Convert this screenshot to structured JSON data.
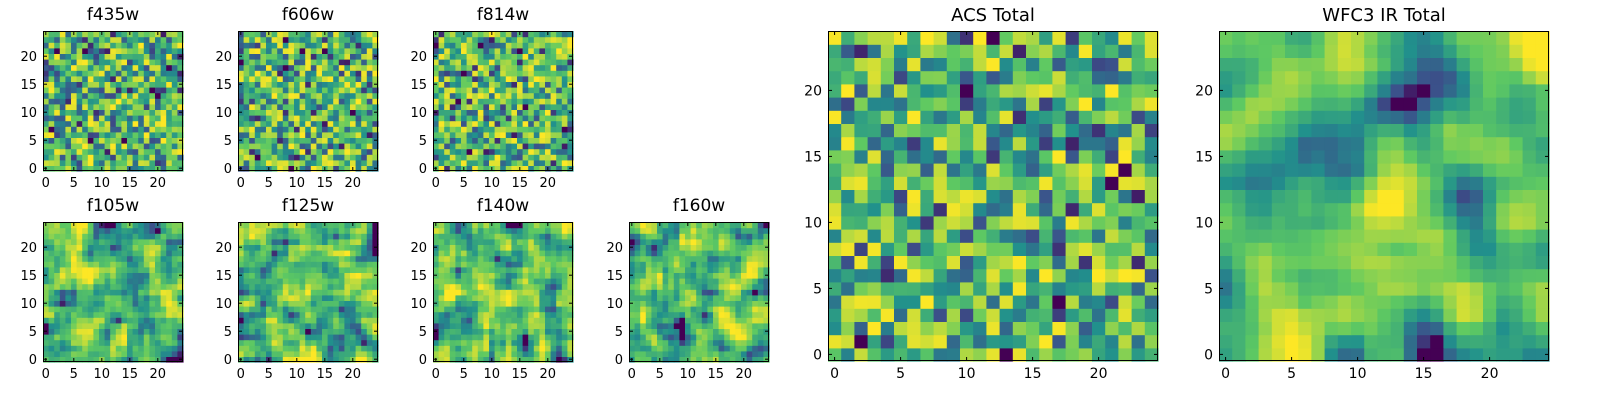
{
  "figure": {
    "colormap": "viridis",
    "colormap_colors": [
      "#440154",
      "#3b528b",
      "#21918c",
      "#5ec962",
      "#fde725"
    ]
  },
  "chart_data": [
    {
      "type": "heatmap",
      "title": "f435w",
      "size": 25,
      "seed": 11,
      "smooth": 0,
      "sat": 0.012,
      "xticks": [
        0,
        5,
        10,
        15,
        20
      ],
      "yticks": [
        0,
        5,
        10,
        15,
        20
      ],
      "xlim": [
        0,
        25
      ],
      "ylim": [
        0,
        25
      ]
    },
    {
      "type": "heatmap",
      "title": "f606w",
      "size": 25,
      "seed": 23,
      "smooth": 0,
      "sat": 0.012,
      "xticks": [
        0,
        5,
        10,
        15,
        20
      ],
      "yticks": [
        0,
        5,
        10,
        15,
        20
      ],
      "xlim": [
        0,
        25
      ],
      "ylim": [
        0,
        25
      ]
    },
    {
      "type": "heatmap",
      "title": "f814w",
      "size": 25,
      "seed": 37,
      "smooth": 0,
      "sat": 0.012,
      "xticks": [
        0,
        5,
        10,
        15,
        20
      ],
      "yticks": [
        0,
        5,
        10,
        15,
        20
      ],
      "xlim": [
        0,
        25
      ],
      "ylim": [
        0,
        25
      ]
    },
    {
      "type": "heatmap",
      "title": "f105w",
      "size": 25,
      "seed": 41,
      "smooth": 1,
      "sat": 0.012,
      "xticks": [
        0,
        5,
        10,
        15,
        20
      ],
      "yticks": [
        0,
        5,
        10,
        15,
        20
      ],
      "xlim": [
        0,
        25
      ],
      "ylim": [
        0,
        25
      ]
    },
    {
      "type": "heatmap",
      "title": "f125w",
      "size": 25,
      "seed": 53,
      "smooth": 1,
      "sat": 0.012,
      "xticks": [
        0,
        5,
        10,
        15,
        20
      ],
      "yticks": [
        0,
        5,
        10,
        15,
        20
      ],
      "xlim": [
        0,
        25
      ],
      "ylim": [
        0,
        25
      ]
    },
    {
      "type": "heatmap",
      "title": "f140w",
      "size": 25,
      "seed": 67,
      "smooth": 1,
      "sat": 0.012,
      "xticks": [
        0,
        5,
        10,
        15,
        20
      ],
      "yticks": [
        0,
        5,
        10,
        15,
        20
      ],
      "xlim": [
        0,
        25
      ],
      "ylim": [
        0,
        25
      ]
    },
    {
      "type": "heatmap",
      "title": "f160w",
      "size": 25,
      "seed": 79,
      "smooth": 1,
      "sat": 0.012,
      "xticks": [
        0,
        5,
        10,
        15,
        20
      ],
      "yticks": [
        0,
        5,
        10,
        15,
        20
      ],
      "xlim": [
        0,
        25
      ],
      "ylim": [
        0,
        25
      ]
    },
    {
      "type": "heatmap",
      "title": "ACS Total",
      "size": 25,
      "seed": 97,
      "smooth": 0,
      "sat": 0.01,
      "xticks": [
        0,
        5,
        10,
        15,
        20
      ],
      "yticks": [
        0,
        5,
        10,
        15,
        20
      ],
      "xlim": [
        0,
        25
      ],
      "ylim": [
        0,
        25
      ]
    },
    {
      "type": "heatmap",
      "title": "WFC3 IR Total",
      "size": 25,
      "seed": 101,
      "smooth": 2,
      "sat": 0.008,
      "xticks": [
        0,
        5,
        10,
        15,
        20
      ],
      "yticks": [
        0,
        5,
        10,
        15,
        20
      ],
      "xlim": [
        0,
        25
      ],
      "ylim": [
        0,
        25
      ]
    }
  ]
}
